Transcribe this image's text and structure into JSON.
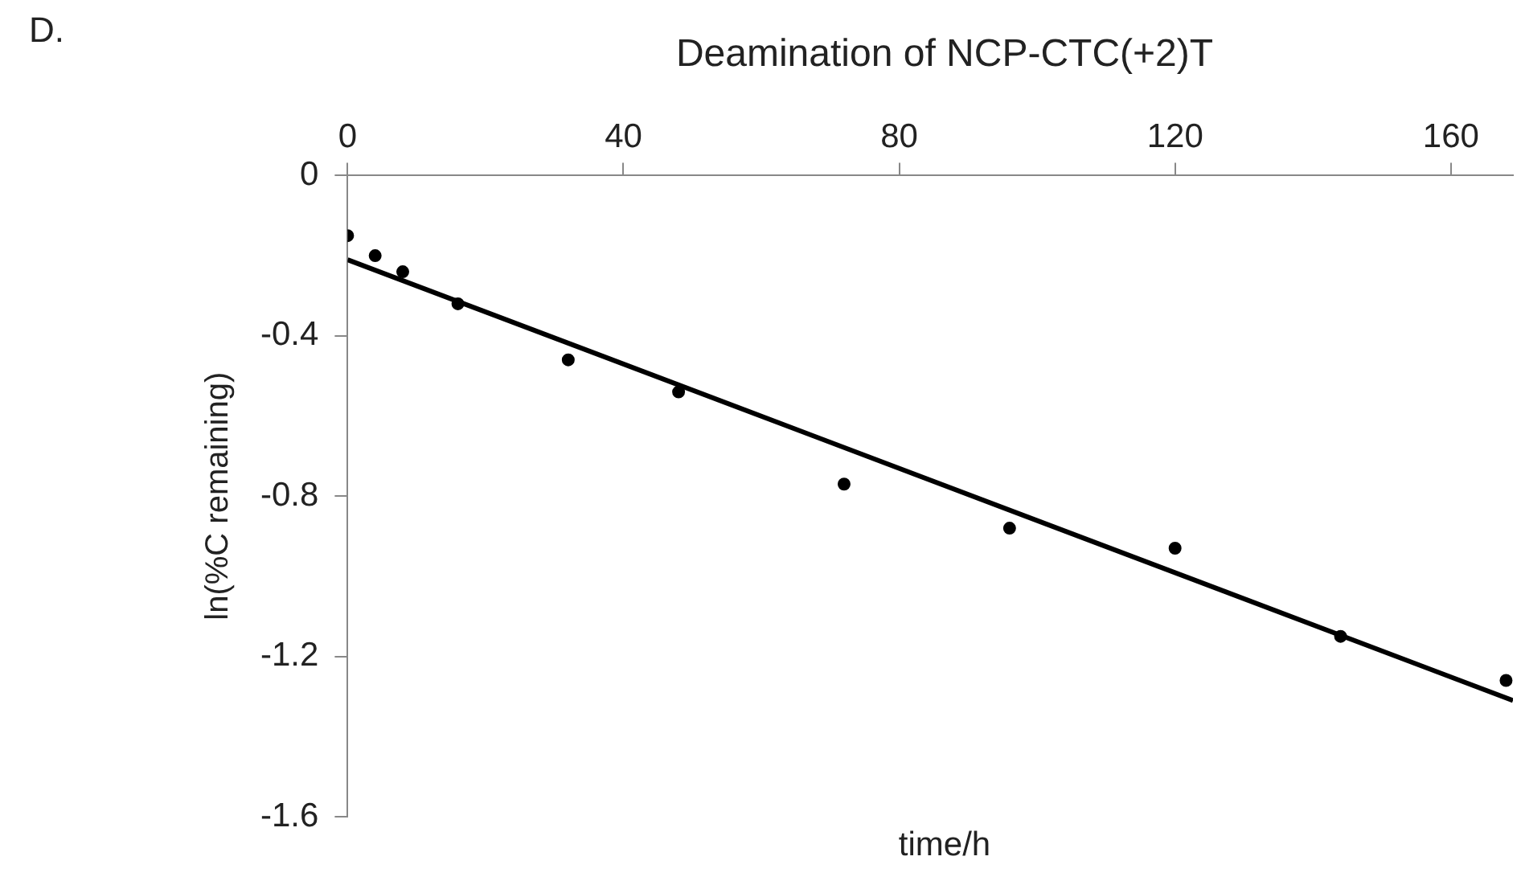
{
  "chart_data": {
    "type": "scatter",
    "title": "Deamination of NCP-CTC(+2)T",
    "xlabel": "time/h",
    "ylabel": "ln(%C remaining)",
    "annotations": [
      "D."
    ],
    "x": [
      0,
      4,
      8,
      16,
      32,
      48,
      72,
      96,
      120,
      144,
      168
    ],
    "series": [
      {
        "type": "scatter",
        "color": "#000000",
        "marker": "circle",
        "values": [
          -0.15,
          -0.2,
          -0.24,
          -0.32,
          -0.46,
          -0.54,
          -0.77,
          -0.88,
          -0.93,
          -1.15,
          -1.26
        ]
      },
      {
        "type": "line",
        "color": "#000000",
        "marker": "none",
        "x": [
          0,
          169
        ],
        "values": [
          -0.21,
          -1.31
        ]
      }
    ],
    "xlim": [
      0,
      169
    ],
    "xticks": [
      0,
      40,
      80,
      120,
      160
    ],
    "ylim": [
      -1.6,
      0
    ],
    "yticks": [
      0,
      -0.4,
      -0.8,
      -1.2,
      -1.6
    ],
    "legend": false
  }
}
